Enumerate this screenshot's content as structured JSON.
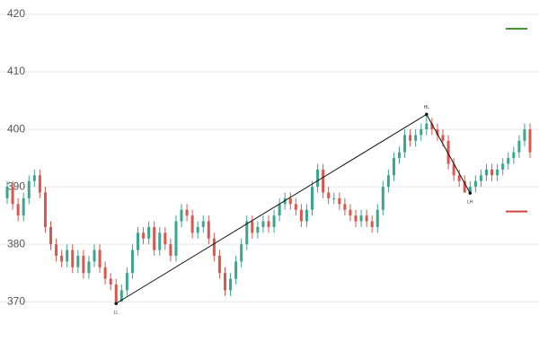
{
  "chart_data": {
    "type": "candlestick",
    "x": [
      0,
      1,
      2,
      3,
      4,
      5,
      6,
      7,
      8,
      9,
      10,
      11,
      12,
      13,
      14,
      15,
      16,
      17,
      18,
      19,
      20,
      21,
      22,
      23,
      24,
      25,
      26,
      27,
      28,
      29,
      30,
      31,
      32,
      33,
      34,
      35,
      36,
      37,
      38,
      39,
      40,
      41,
      42,
      43,
      44,
      45,
      46,
      47,
      48,
      49,
      50,
      51,
      52,
      53,
      54,
      55,
      56,
      57,
      58,
      59,
      60,
      61,
      62,
      63,
      64,
      65,
      66,
      67,
      68,
      69,
      70,
      71,
      72,
      73,
      74,
      75,
      76,
      77,
      78,
      79,
      80,
      81,
      82,
      83,
      84,
      85,
      86,
      87,
      88,
      89,
      90,
      91,
      92,
      93,
      94,
      95,
      96
    ],
    "open": [
      388,
      390,
      387,
      385,
      388,
      391,
      392,
      389,
      383,
      380,
      378,
      377,
      379,
      376,
      378,
      375,
      377,
      379,
      376,
      374,
      373,
      370,
      372,
      375,
      379,
      382,
      381,
      383,
      379,
      382,
      380,
      378,
      384,
      386,
      385,
      382,
      383,
      384,
      381,
      378,
      375,
      372,
      374,
      377,
      380,
      384,
      382,
      383,
      384,
      383,
      385,
      387,
      388,
      387,
      386,
      384,
      386,
      390,
      393,
      389,
      388,
      388,
      387,
      386,
      385,
      384,
      385,
      384,
      383,
      386,
      390,
      392,
      395,
      396,
      399,
      398,
      399,
      400,
      401,
      400,
      399,
      398,
      394,
      392,
      391,
      389,
      390,
      391,
      392,
      393,
      392,
      393,
      394,
      395,
      396,
      398,
      400
    ],
    "high": [
      391,
      391,
      388,
      389,
      392,
      393,
      393,
      390,
      384,
      381,
      379,
      380,
      380,
      379,
      379,
      378,
      380,
      380,
      377,
      375,
      374,
      373,
      376,
      380,
      383,
      383,
      384,
      384,
      383,
      383,
      381,
      385,
      387,
      387,
      386,
      384,
      385,
      385,
      382,
      379,
      376,
      375,
      378,
      381,
      385,
      385,
      384,
      385,
      385,
      386,
      388,
      389,
      389,
      388,
      387,
      387,
      391,
      394,
      394,
      390,
      389,
      389,
      388,
      387,
      386,
      386,
      386,
      385,
      387,
      391,
      393,
      396,
      397,
      400,
      400,
      400,
      401,
      402.6,
      402,
      401,
      400,
      399,
      395,
      393,
      392,
      391,
      392,
      393,
      394,
      394,
      394,
      395,
      396,
      397,
      399,
      401,
      401
    ],
    "low": [
      387,
      386,
      384,
      384,
      387,
      390,
      388,
      382,
      379,
      377,
      376,
      376,
      375,
      375,
      374,
      374,
      376,
      375,
      373,
      372,
      369.7,
      370,
      371,
      374,
      378,
      380,
      380,
      378,
      378,
      379,
      377,
      377,
      383,
      384,
      381,
      381,
      382,
      380,
      377,
      374,
      371,
      371,
      373,
      376,
      379,
      381,
      381,
      382,
      382,
      382,
      384,
      386,
      386,
      385,
      383,
      383,
      385,
      389,
      388,
      387,
      387,
      386,
      385,
      384,
      383,
      383,
      383,
      382,
      382,
      385,
      389,
      391,
      394,
      395,
      397,
      397,
      398,
      399,
      399,
      398,
      397,
      393,
      391,
      390,
      389,
      388.9,
      389,
      390,
      391,
      391,
      391,
      392,
      393,
      394,
      395,
      397,
      395
    ],
    "close": [
      390,
      387,
      385,
      388,
      391,
      392,
      389,
      383,
      380,
      378,
      377,
      379,
      376,
      378,
      375,
      377,
      379,
      376,
      374,
      373,
      370,
      372,
      375,
      379,
      382,
      381,
      383,
      379,
      382,
      380,
      378,
      384,
      386,
      385,
      382,
      383,
      384,
      381,
      378,
      375,
      372,
      374,
      377,
      380,
      384,
      382,
      383,
      384,
      383,
      385,
      387,
      388,
      387,
      386,
      384,
      386,
      390,
      393,
      389,
      388,
      388,
      387,
      386,
      385,
      384,
      385,
      384,
      383,
      386,
      390,
      392,
      395,
      396,
      399,
      398,
      399,
      400,
      401,
      400,
      399,
      398,
      394,
      392,
      391,
      389,
      390,
      391,
      392,
      393,
      392,
      393,
      394,
      395,
      396,
      398,
      400,
      396
    ],
    "up_color": "#3aa68e",
    "down_color": "#d9574c",
    "ylim": [
      361.6,
      422.5
    ],
    "yticks": [
      370,
      380,
      390,
      400,
      410,
      420
    ],
    "grid": true,
    "pivots": [
      {
        "label": "LL",
        "x": 20,
        "value": 369.7
      },
      {
        "label": "HL",
        "x": 77,
        "value": 402.6
      },
      {
        "label": "LH",
        "x": 85,
        "value": 388.9
      }
    ],
    "levels": [
      {
        "value": 417.5,
        "color": "#4a8f3a"
      },
      {
        "value": 385.7,
        "color": "#d0463c"
      }
    ]
  }
}
